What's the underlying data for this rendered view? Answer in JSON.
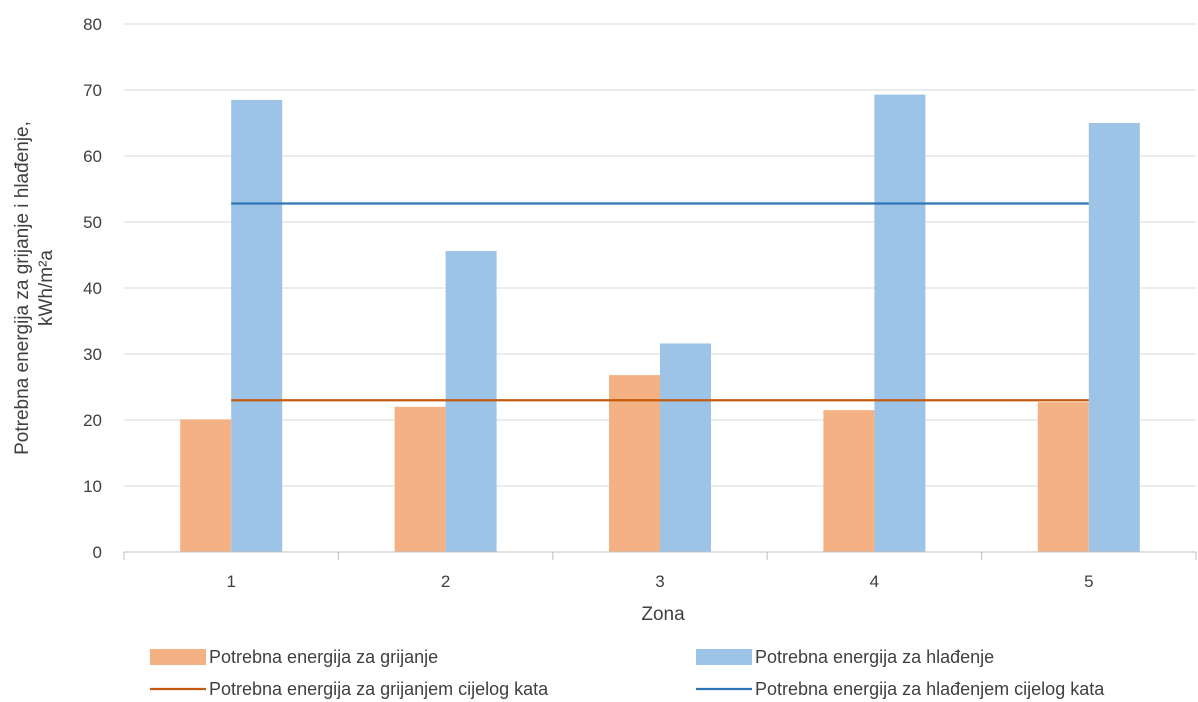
{
  "chart_data": {
    "type": "bar",
    "categories": [
      "1",
      "2",
      "3",
      "4",
      "5"
    ],
    "series": [
      {
        "name": "Potrebna energija za grijanje",
        "kind": "bar",
        "color": "#f4b183",
        "values": [
          20.1,
          22.0,
          26.8,
          21.5,
          22.7
        ]
      },
      {
        "name": "Potrebna energija za hlađenje",
        "kind": "bar",
        "color": "#9dc3e6",
        "values": [
          68.5,
          45.6,
          31.6,
          69.3,
          65.0
        ]
      },
      {
        "name": "Potrebna energija za grijanjem cijelog kata",
        "kind": "line",
        "color": "#c55a11",
        "value": 23.0
      },
      {
        "name": "Potrebna energija za hlađenjem cijelog kata",
        "kind": "line",
        "color": "#2e75b6",
        "value": 52.8
      }
    ],
    "xlabel": "Zona",
    "ylabel_line1": "Potrebna energija za grijanje i hlađenje,",
    "ylabel_line2": "kWh/m²a",
    "ylim": [
      0,
      80
    ],
    "yticks": [
      0,
      10,
      20,
      30,
      40,
      50,
      60,
      70,
      80
    ],
    "grid": true,
    "legend_position": "bottom"
  }
}
